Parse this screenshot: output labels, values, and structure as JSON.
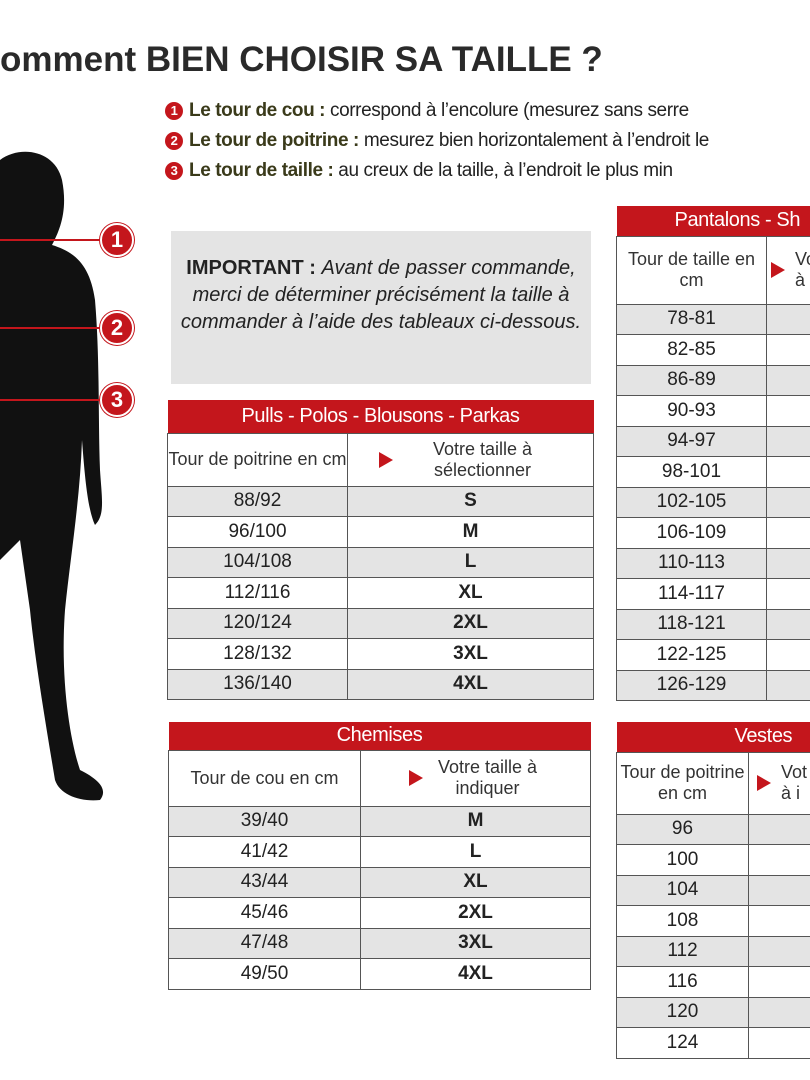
{
  "title": "omment BIEN CHOISIR SA TAILLE ?",
  "legend": [
    {
      "num": "1",
      "term": "Le tour de cou :",
      "text": " correspond à l’encolure (mesurez sans serre"
    },
    {
      "num": "2",
      "term": "Le tour de poitrine :",
      "text": " mesurez bien horizontalement à l’endroit le"
    },
    {
      "num": "3",
      "term": "Le tour de taille :",
      "text": " au creux de la taille, à l’endroit le plus min"
    }
  ],
  "markers": [
    "1",
    "2",
    "3"
  ],
  "important": {
    "label": "IMPORTANT :",
    "text": "Avant de passer commande, merci de déterminer précisément la taille à commander à l’aide des tableaux ci-dessous."
  },
  "pulls": {
    "title": "Pulls - Polos - Blousons - Parkas",
    "col1": "Tour de poitrine en cm",
    "col2": "Votre taille à sélectionner",
    "rows": [
      [
        "88/92",
        "S"
      ],
      [
        "96/100",
        "M"
      ],
      [
        "104/108",
        "L"
      ],
      [
        "112/116",
        "XL"
      ],
      [
        "120/124",
        "2XL"
      ],
      [
        "128/132",
        "3XL"
      ],
      [
        "136/140",
        "4XL"
      ]
    ]
  },
  "chemises": {
    "title": "Chemises",
    "col1": "Tour de cou en cm",
    "col2": "Votre taille à indiquer",
    "rows": [
      [
        "39/40",
        "M"
      ],
      [
        "41/42",
        "L"
      ],
      [
        "43/44",
        "XL"
      ],
      [
        "45/46",
        "2XL"
      ],
      [
        "47/48",
        "3XL"
      ],
      [
        "49/50",
        "4XL"
      ]
    ]
  },
  "pantalons": {
    "title": "Pantalons - Sh",
    "col1": "Tour de taille en cm",
    "col2": "Vo à",
    "rows": [
      "78-81",
      "82-85",
      "86-89",
      "90-93",
      "94-97",
      "98-101",
      "102-105",
      "106-109",
      "110-113",
      "114-117",
      "118-121",
      "122-125",
      "126-129"
    ]
  },
  "vestes": {
    "title": "Vestes",
    "col1": "Tour de poitrine en cm",
    "col2": "Vot à i",
    "rows": [
      "96",
      "100",
      "104",
      "108",
      "112",
      "116",
      "120",
      "124"
    ]
  },
  "colors": {
    "accent": "#c4161c",
    "stripe": "#e4e4e4"
  }
}
